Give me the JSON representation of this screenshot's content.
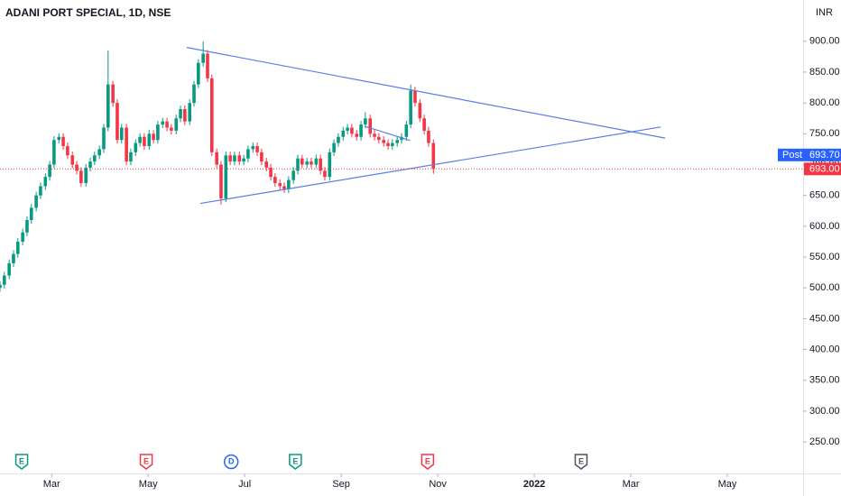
{
  "chart_data": {
    "type": "candlestick",
    "title": "ADANI PORT SPECIAL, 1D, NSE",
    "currency": "INR",
    "up_color": "#089981",
    "down_color": "#f23645",
    "grid": false,
    "xlim": [
      0.93,
      17.57
    ],
    "ylim": [
      199,
      967
    ],
    "xticks": [
      {
        "value": 2,
        "label": "Mar"
      },
      {
        "value": 4,
        "label": "May"
      },
      {
        "value": 6,
        "label": "Jul"
      },
      {
        "value": 8,
        "label": "Sep"
      },
      {
        "value": 10,
        "label": "Nov"
      },
      {
        "value": 12,
        "label": "2022",
        "bold": true
      },
      {
        "value": 14,
        "label": "Mar"
      },
      {
        "value": 16,
        "label": "May"
      }
    ],
    "yticks": [
      {
        "value": 250,
        "label": "250.00"
      },
      {
        "value": 300,
        "label": "300.00"
      },
      {
        "value": 350,
        "label": "350.00"
      },
      {
        "value": 400,
        "label": "400.00"
      },
      {
        "value": 450,
        "label": "450.00"
      },
      {
        "value": 500,
        "label": "500.00"
      },
      {
        "value": 550,
        "label": "550.00"
      },
      {
        "value": 600,
        "label": "600.00"
      },
      {
        "value": 650,
        "label": "650.00"
      },
      {
        "value": 700,
        "label": "700.00"
      },
      {
        "value": 750,
        "label": "750.00"
      },
      {
        "value": 800,
        "label": "800.00"
      },
      {
        "value": 850,
        "label": "850.00"
      },
      {
        "value": 900,
        "label": "900.00"
      }
    ],
    "x": [
      0.93,
      1.02,
      1.12,
      1.21,
      1.3,
      1.4,
      1.49,
      1.58,
      1.68,
      1.77,
      1.87,
      1.96,
      2.05,
      2.15,
      2.24,
      2.33,
      2.43,
      2.52,
      2.61,
      2.71,
      2.8,
      2.89,
      2.99,
      3.08,
      3.17,
      3.27,
      3.36,
      3.45,
      3.55,
      3.64,
      3.74,
      3.83,
      3.92,
      4.02,
      4.11,
      4.2,
      4.3,
      4.39,
      4.48,
      4.58,
      4.67,
      4.76,
      4.86,
      4.95,
      5.04,
      5.14,
      5.23,
      5.32,
      5.42,
      5.51,
      5.61,
      5.7,
      5.79,
      5.89,
      5.98,
      6.07,
      6.17,
      6.26,
      6.35,
      6.45,
      6.54,
      6.63,
      6.73,
      6.82,
      6.91,
      7.01,
      7.1,
      7.19,
      7.29,
      7.38,
      7.48,
      7.57,
      7.66,
      7.76,
      7.85,
      7.94,
      8.04,
      8.13,
      8.22,
      8.32,
      8.41,
      8.5,
      8.6,
      8.69,
      8.78,
      8.88,
      8.97,
      9.06,
      9.16,
      9.25,
      9.35,
      9.44,
      9.53,
      9.63,
      9.72,
      9.81,
      9.91
    ],
    "open": [
      500,
      505,
      520,
      540,
      555,
      575,
      590,
      610,
      630,
      650,
      665,
      680,
      700,
      740,
      745,
      730,
      715,
      700,
      690,
      670,
      695,
      705,
      715,
      725,
      760,
      830,
      800,
      740,
      760,
      705,
      720,
      735,
      745,
      730,
      750,
      740,
      765,
      770,
      760,
      755,
      775,
      790,
      770,
      800,
      830,
      865,
      880,
      840,
      720,
      700,
      645,
      715,
      705,
      715,
      705,
      710,
      725,
      730,
      720,
      705,
      695,
      680,
      670,
      665,
      660,
      675,
      690,
      710,
      700,
      705,
      700,
      710,
      690,
      680,
      720,
      735,
      745,
      755,
      760,
      750,
      745,
      765,
      775,
      750,
      745,
      740,
      735,
      730,
      735,
      740,
      745,
      765,
      820,
      800,
      775,
      755,
      735
    ],
    "high": [
      511,
      526,
      546,
      561,
      581,
      596,
      616,
      636,
      656,
      671,
      686,
      706,
      746,
      751,
      751,
      736,
      721,
      706,
      696,
      701,
      711,
      721,
      731,
      766,
      885,
      836,
      806,
      766,
      766,
      726,
      741,
      751,
      751,
      756,
      756,
      771,
      776,
      776,
      766,
      781,
      796,
      796,
      806,
      836,
      871,
      900,
      886,
      846,
      726,
      706,
      721,
      721,
      721,
      721,
      716,
      731,
      736,
      736,
      726,
      711,
      701,
      686,
      676,
      671,
      681,
      696,
      716,
      716,
      711,
      711,
      716,
      716,
      696,
      726,
      741,
      751,
      761,
      766,
      766,
      756,
      771,
      785,
      781,
      756,
      751,
      746,
      741,
      741,
      746,
      751,
      771,
      830,
      826,
      806,
      781,
      761,
      741
    ],
    "low": [
      494,
      499,
      514,
      534,
      549,
      569,
      584,
      604,
      624,
      644,
      659,
      674,
      694,
      734,
      724,
      709,
      694,
      684,
      664,
      664,
      689,
      699,
      709,
      719,
      754,
      794,
      734,
      734,
      699,
      699,
      714,
      729,
      724,
      724,
      734,
      734,
      759,
      754,
      749,
      749,
      769,
      764,
      764,
      794,
      824,
      859,
      834,
      714,
      694,
      635,
      639,
      699,
      699,
      699,
      699,
      704,
      719,
      714,
      699,
      689,
      674,
      664,
      659,
      654,
      654,
      669,
      684,
      694,
      694,
      694,
      694,
      684,
      674,
      674,
      714,
      729,
      739,
      749,
      744,
      739,
      739,
      759,
      744,
      739,
      734,
      729,
      724,
      724,
      729,
      734,
      739,
      759,
      794,
      769,
      749,
      729,
      685
    ],
    "close": [
      505,
      520,
      540,
      555,
      575,
      590,
      610,
      630,
      650,
      665,
      680,
      700,
      740,
      745,
      730,
      715,
      700,
      690,
      670,
      695,
      705,
      715,
      725,
      760,
      830,
      800,
      740,
      760,
      705,
      720,
      735,
      745,
      730,
      750,
      740,
      765,
      770,
      760,
      755,
      775,
      790,
      770,
      800,
      830,
      865,
      880,
      840,
      720,
      700,
      645,
      715,
      705,
      715,
      705,
      710,
      725,
      730,
      720,
      705,
      695,
      680,
      670,
      665,
      660,
      675,
      690,
      710,
      700,
      705,
      700,
      710,
      690,
      680,
      720,
      735,
      745,
      755,
      760,
      750,
      745,
      765,
      775,
      750,
      745,
      740,
      735,
      730,
      735,
      740,
      745,
      765,
      820,
      800,
      775,
      755,
      735,
      693
    ],
    "trend_line_color": "#5a7ee6",
    "trend_lines": [
      {
        "x": [
          4.8,
          14.71
        ],
        "y": [
          890,
          743
        ]
      },
      {
        "x": [
          5.08,
          14.62
        ],
        "y": [
          637,
          761
        ]
      },
      {
        "x": [
          8.5,
          9.43
        ],
        "y": [
          762,
          739
        ]
      }
    ],
    "price_tags": [
      {
        "label": "Post",
        "value": 693.7,
        "value_label": "693.70",
        "color": "#2962ff"
      },
      {
        "value": 693,
        "value_label": "693.00",
        "color": "#f23645"
      }
    ],
    "events": [
      {
        "x": 1.38,
        "label": "E",
        "color": "#089981",
        "shape": "badge"
      },
      {
        "x": 3.96,
        "label": "E",
        "color": "#f23645",
        "shape": "badge"
      },
      {
        "x": 5.72,
        "label": "D",
        "color": "#2962ff",
        "shape": "circle"
      },
      {
        "x": 7.05,
        "label": "E",
        "color": "#089981",
        "shape": "badge"
      },
      {
        "x": 9.79,
        "label": "E",
        "color": "#f23645",
        "shape": "badge"
      },
      {
        "x": 12.97,
        "label": "E",
        "color": "#50535e",
        "shape": "badge"
      }
    ]
  }
}
